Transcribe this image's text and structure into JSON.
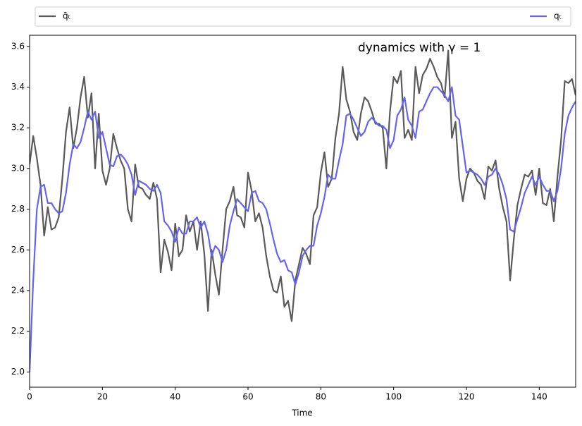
{
  "chart_data": {
    "type": "line",
    "annotation": "dynamics with γ = 1",
    "xlabel": "Time",
    "legend": "top",
    "xlim": [
      0,
      150
    ],
    "ylim": [
      1.925,
      3.655
    ],
    "xticks": [
      0,
      20,
      40,
      60,
      80,
      100,
      120,
      140
    ],
    "yticks": [
      {
        "value": 2,
        "label": "2.0"
      },
      {
        "value": 2.2,
        "label": "2.2"
      },
      {
        "value": 2.4,
        "label": "2.4"
      },
      {
        "value": 2.6,
        "label": "2.6"
      },
      {
        "value": 2.8,
        "label": "2.8"
      },
      {
        "value": 3,
        "label": "3.0"
      },
      {
        "value": 3.2,
        "label": "3.2"
      },
      {
        "value": 3.4,
        "label": "3.4"
      },
      {
        "value": 3.6,
        "label": "3.6"
      }
    ],
    "x": [
      0,
      1,
      2,
      3,
      4,
      5,
      6,
      7,
      8,
      9,
      10,
      11,
      12,
      13,
      14,
      15,
      16,
      17,
      18,
      19,
      20,
      21,
      22,
      23,
      24,
      25,
      26,
      27,
      28,
      29,
      30,
      31,
      32,
      33,
      34,
      35,
      36,
      37,
      38,
      39,
      40,
      41,
      42,
      43,
      44,
      45,
      46,
      47,
      48,
      49,
      50,
      51,
      52,
      53,
      54,
      55,
      56,
      57,
      58,
      59,
      60,
      61,
      62,
      63,
      64,
      65,
      66,
      67,
      68,
      69,
      70,
      71,
      72,
      73,
      74,
      75,
      76,
      77,
      78,
      79,
      80,
      81,
      82,
      83,
      84,
      85,
      86,
      87,
      88,
      89,
      90,
      91,
      92,
      93,
      94,
      95,
      96,
      97,
      98,
      99,
      100,
      101,
      102,
      103,
      104,
      105,
      106,
      107,
      108,
      109,
      110,
      111,
      112,
      113,
      114,
      115,
      116,
      117,
      118,
      119,
      120,
      121,
      122,
      123,
      124,
      125,
      126,
      127,
      128,
      129,
      130,
      131,
      132,
      133,
      134,
      135,
      136,
      137,
      138,
      139,
      140,
      141,
      142,
      143,
      144,
      145,
      146,
      147,
      148,
      149,
      150
    ],
    "series": [
      {
        "name": "q̄ₜ",
        "color": "#5a5a5a",
        "values": [
          3.02,
          3.16,
          3.05,
          2.92,
          2.67,
          2.81,
          2.7,
          2.71,
          2.76,
          2.95,
          3.18,
          3.3,
          3.1,
          3.2,
          3.35,
          3.45,
          3.25,
          3.37,
          3.0,
          3.27,
          2.99,
          2.92,
          3.0,
          3.17,
          3.1,
          3.04,
          3.0,
          2.8,
          2.74,
          3.02,
          2.91,
          2.9,
          2.87,
          2.85,
          2.93,
          2.85,
          2.49,
          2.65,
          2.59,
          2.5,
          2.73,
          2.57,
          2.6,
          2.77,
          2.69,
          2.74,
          2.6,
          2.74,
          2.58,
          2.3,
          2.6,
          2.48,
          2.38,
          2.6,
          2.8,
          2.84,
          2.91,
          2.77,
          2.76,
          2.71,
          2.98,
          2.89,
          2.74,
          2.78,
          2.71,
          2.57,
          2.47,
          2.4,
          2.39,
          2.47,
          2.32,
          2.35,
          2.25,
          2.45,
          2.53,
          2.61,
          2.58,
          2.53,
          2.77,
          2.81,
          2.98,
          3.08,
          2.91,
          2.95,
          3.15,
          3.27,
          3.5,
          3.34,
          3.28,
          3.18,
          3.14,
          3.27,
          3.35,
          3.33,
          3.28,
          3.22,
          3.22,
          3.2,
          3.0,
          3.28,
          3.45,
          3.42,
          3.48,
          3.15,
          3.19,
          3.14,
          3.5,
          3.37,
          3.46,
          3.49,
          3.54,
          3.5,
          3.45,
          3.42,
          3.35,
          3.58,
          3.15,
          3.23,
          2.95,
          2.84,
          2.95,
          3.0,
          2.98,
          2.94,
          2.92,
          2.85,
          3.01,
          2.99,
          3.04,
          2.9,
          2.81,
          2.74,
          2.45,
          2.65,
          2.82,
          2.9,
          2.97,
          2.96,
          2.99,
          2.87,
          3.0,
          2.83,
          2.82,
          2.9,
          2.74,
          2.96,
          3.14,
          3.43,
          3.42,
          3.44,
          3.36
        ]
      },
      {
        "name": "qₜ",
        "color": "#6464f0",
        "values": [
          2.0,
          2.45,
          2.8,
          2.91,
          2.92,
          2.83,
          2.83,
          2.8,
          2.78,
          2.79,
          2.88,
          3.02,
          3.12,
          3.1,
          3.13,
          3.2,
          3.28,
          3.24,
          3.28,
          3.15,
          3.18,
          3.1,
          3.02,
          3.01,
          3.06,
          3.07,
          3.05,
          3.02,
          2.97,
          2.87,
          2.94,
          2.93,
          2.92,
          2.9,
          2.89,
          2.92,
          2.88,
          2.74,
          2.72,
          2.69,
          2.64,
          2.71,
          2.68,
          2.68,
          2.74,
          2.74,
          2.76,
          2.71,
          2.74,
          2.68,
          2.57,
          2.62,
          2.6,
          2.54,
          2.6,
          2.72,
          2.79,
          2.85,
          2.83,
          2.81,
          2.79,
          2.88,
          2.89,
          2.84,
          2.83,
          2.8,
          2.73,
          2.65,
          2.58,
          2.54,
          2.55,
          2.5,
          2.49,
          2.43,
          2.49,
          2.57,
          2.6,
          2.62,
          2.62,
          2.72,
          2.78,
          2.86,
          2.97,
          2.95,
          2.95,
          3.04,
          3.12,
          3.26,
          3.27,
          3.24,
          3.2,
          3.16,
          3.18,
          3.23,
          3.25,
          3.23,
          3.21,
          3.21,
          3.19,
          3.1,
          3.14,
          3.26,
          3.29,
          3.35,
          3.24,
          3.21,
          3.15,
          3.28,
          3.29,
          3.33,
          3.37,
          3.4,
          3.4,
          3.38,
          3.36,
          3.33,
          3.4,
          3.26,
          3.24,
          3.11,
          2.98,
          2.99,
          2.98,
          2.97,
          2.95,
          2.92,
          2.96,
          2.97,
          3.0,
          2.97,
          2.92,
          2.85,
          2.7,
          2.69,
          2.75,
          2.81,
          2.88,
          2.92,
          2.96,
          2.92,
          2.96,
          2.92,
          2.89,
          2.89,
          2.84,
          2.89,
          3.0,
          3.17,
          3.26,
          3.3,
          3.33
        ]
      }
    ]
  }
}
